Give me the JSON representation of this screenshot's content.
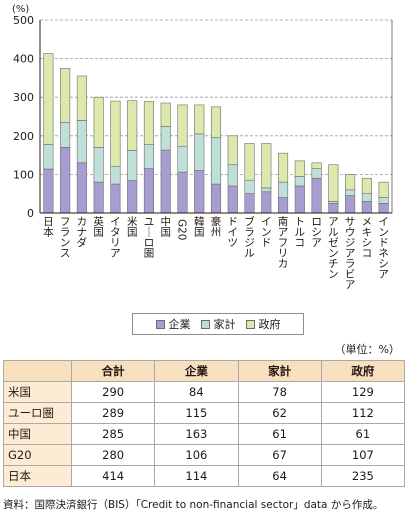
{
  "chart_data": {
    "type": "bar",
    "stacked": true,
    "ylabel": "(%)",
    "ylim": [
      0,
      500
    ],
    "yticks": [
      0,
      100,
      200,
      300,
      400,
      500
    ],
    "grid": true,
    "categories": [
      "日本",
      "フランス",
      "カナダ",
      "英国",
      "イタリア",
      "米国",
      "ユーロ圏",
      "中国",
      "G20",
      "韓国",
      "豪州",
      "ドイツ",
      "ブラジル",
      "インド",
      "南アフリカ",
      "トルコ",
      "ロシア",
      "アルゼンチン",
      "サウジアラビア",
      "メキシコ",
      "インドネシア"
    ],
    "series": [
      {
        "name": "企業",
        "color": "#a89dd0",
        "values": [
          114,
          170,
          130,
          80,
          75,
          84,
          115,
          163,
          106,
          110,
          75,
          70,
          50,
          55,
          40,
          70,
          90,
          25,
          45,
          30,
          25
        ]
      },
      {
        "name": "家計",
        "color": "#bfe0d8",
        "values": [
          64,
          65,
          110,
          90,
          45,
          78,
          62,
          61,
          67,
          95,
          120,
          55,
          35,
          10,
          40,
          25,
          25,
          5,
          15,
          20,
          15
        ]
      },
      {
        "name": "政府",
        "color": "#dbe9ad",
        "values": [
          235,
          140,
          115,
          130,
          170,
          129,
          112,
          61,
          107,
          75,
          80,
          75,
          95,
          115,
          75,
          40,
          15,
          95,
          40,
          40,
          40
        ]
      }
    ]
  },
  "table": {
    "unit": "（単位：%）",
    "headers": [
      "",
      "合計",
      "企業",
      "家計",
      "政府"
    ],
    "rows": [
      [
        "米国",
        "290",
        "84",
        "78",
        "129"
      ],
      [
        "ユーロ圏",
        "289",
        "115",
        "62",
        "112"
      ],
      [
        "中国",
        "285",
        "163",
        "61",
        "61"
      ],
      [
        "G20",
        "280",
        "106",
        "67",
        "107"
      ],
      [
        "日本",
        "414",
        "114",
        "64",
        "235"
      ]
    ]
  },
  "source": "資料：国際決済銀行（BIS）「Credit to non-financial sector」data から作成。"
}
